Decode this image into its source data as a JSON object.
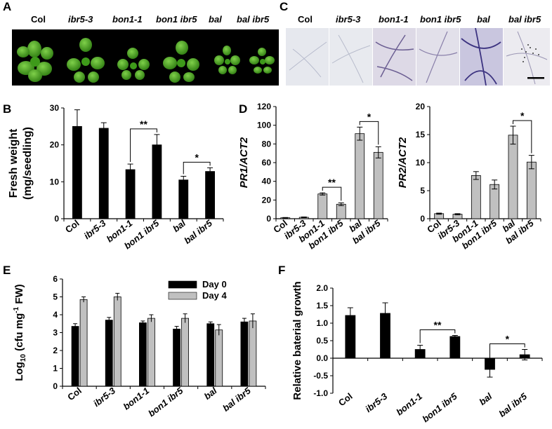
{
  "panel_letters": [
    "A",
    "B",
    "C",
    "D",
    "E",
    "F"
  ],
  "photo_a_labels": [
    "Col",
    "ibr5-3",
    "bon1-1",
    "bon1 ibr5",
    "bal",
    "bal ibr5"
  ],
  "photo_c_labels": [
    "Col",
    "ibr5-3",
    "bon1-1",
    "bon1 ibr5",
    "bal",
    "bal ibr5"
  ],
  "chart_data": [
    {
      "id": "B",
      "type": "bar",
      "ylabel_lines": [
        "Fresh weight",
        "(mg/seedling)"
      ],
      "categories": [
        "Col",
        "ibr5-3",
        "bon1-1",
        "bon1 ibr5",
        "bal",
        "bal ibr5"
      ],
      "values": [
        25,
        24.5,
        13.3,
        20,
        10.5,
        12.8
      ],
      "errors": [
        4.5,
        1.5,
        1.5,
        2.8,
        1.0,
        1.0
      ],
      "ylim": [
        0,
        30
      ],
      "yticks": [
        0,
        10,
        20,
        30
      ],
      "bar_color": "#000000",
      "significance": [
        {
          "pair": [
            2,
            3
          ],
          "label": "**"
        },
        {
          "pair": [
            4,
            5
          ],
          "label": "*"
        }
      ]
    },
    {
      "id": "D1",
      "type": "bar",
      "ylabel": "PR1/ACT2",
      "categories": [
        "Col",
        "ibr5-3",
        "bon1-1",
        "bon1 ibr5",
        "bal",
        "bal ibr5"
      ],
      "values": [
        1,
        1.5,
        26.5,
        15.5,
        91,
        71
      ],
      "errors": [
        0.3,
        0.4,
        1.2,
        1.5,
        7,
        6
      ],
      "ylim": [
        0,
        120
      ],
      "yticks": [
        0,
        20,
        40,
        60,
        80,
        100,
        120
      ],
      "bar_color": "#c0c0c0",
      "significance": [
        {
          "pair": [
            2,
            3
          ],
          "label": "**"
        },
        {
          "pair": [
            4,
            5
          ],
          "label": "*"
        }
      ]
    },
    {
      "id": "D2",
      "type": "bar",
      "ylabel": "PR2/ACT2",
      "categories": [
        "Col",
        "ibr5-3",
        "bon1-1",
        "bon1 ibr5",
        "bal",
        "bal ibr5"
      ],
      "values": [
        0.9,
        0.8,
        7.7,
        6.1,
        14.9,
        10.1
      ],
      "errors": [
        0.1,
        0.1,
        0.7,
        0.8,
        1.6,
        1.2
      ],
      "ylim": [
        0,
        20
      ],
      "yticks": [
        0,
        5,
        10,
        15,
        20
      ],
      "bar_color": "#c0c0c0",
      "significance": [
        {
          "pair": [
            4,
            5
          ],
          "label": "*"
        }
      ]
    },
    {
      "id": "E",
      "type": "bar",
      "ylabel": "Log10 (cfu mg-1 FW)",
      "categories": [
        "Col",
        "ibr5-3",
        "bon1-1",
        "bon1 ibr5",
        "bal",
        "bal ibr5"
      ],
      "series": [
        {
          "name": "Day 0",
          "values": [
            3.35,
            3.7,
            3.55,
            3.2,
            3.5,
            3.6
          ],
          "errors": [
            0.15,
            0.15,
            0.1,
            0.15,
            0.1,
            0.2
          ],
          "color": "#000000"
        },
        {
          "name": "Day 4",
          "values": [
            4.85,
            5.0,
            3.8,
            3.8,
            3.15,
            3.65
          ],
          "errors": [
            0.15,
            0.2,
            0.2,
            0.25,
            0.3,
            0.4
          ],
          "color": "#c0c0c0"
        }
      ],
      "ylim": [
        0,
        6
      ],
      "yticks": [
        0,
        1,
        2,
        3,
        4,
        5,
        6
      ],
      "legend_position": "top-right"
    },
    {
      "id": "F",
      "type": "bar",
      "ylabel": "Relative baterial growth",
      "categories": [
        "Col",
        "ibr5-3",
        "bon1-1",
        "bon1 ibr5",
        "bal",
        "bal ibr5"
      ],
      "values": [
        1.22,
        1.28,
        0.25,
        0.62,
        -0.32,
        0.1
      ],
      "errors": [
        0.22,
        0.3,
        0.12,
        0.03,
        0.22,
        0.15
      ],
      "ylim": [
        -1.0,
        2.0
      ],
      "yticks": [
        -1.0,
        -0.5,
        0.0,
        0.5,
        1.0,
        1.5,
        2.0
      ],
      "bar_color": "#000000",
      "significance": [
        {
          "pair": [
            2,
            3
          ],
          "label": "**"
        },
        {
          "pair": [
            4,
            5
          ],
          "label": "*"
        }
      ]
    }
  ]
}
